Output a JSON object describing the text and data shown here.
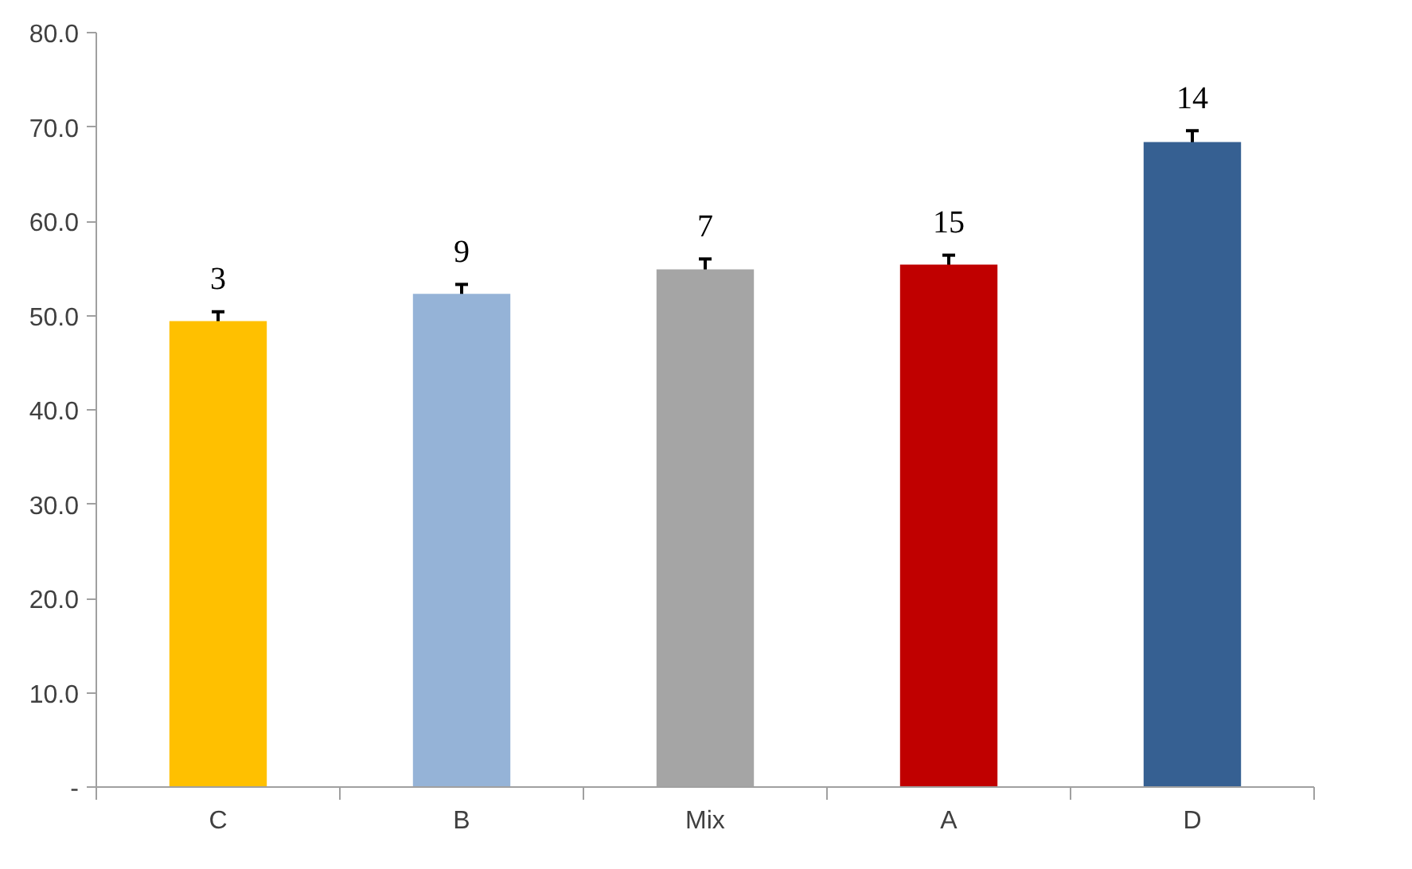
{
  "chart_data": {
    "type": "bar",
    "categories": [
      "C",
      "B",
      "Mix",
      "A",
      "D"
    ],
    "values": [
      49.4,
      52.3,
      54.9,
      55.4,
      68.4
    ],
    "colors": [
      "#ffc000",
      "#95b3d7",
      "#a5a5a5",
      "#c00000",
      "#366092"
    ],
    "errors": [
      1.0,
      1.0,
      1.1,
      1.0,
      1.2
    ],
    "ylim": [
      0,
      80
    ],
    "yticks": [
      {
        "value": 0,
        "label": "-"
      },
      {
        "value": 10,
        "label": "10.0"
      },
      {
        "value": 20,
        "label": "20.0"
      },
      {
        "value": 30,
        "label": "30.0"
      },
      {
        "value": 40,
        "label": "40.0"
      },
      {
        "value": 50,
        "label": "50.0"
      },
      {
        "value": 60,
        "label": "60.0"
      },
      {
        "value": 70,
        "label": "70.0"
      },
      {
        "value": 80,
        "label": "80.0"
      }
    ],
    "grid": false,
    "annotations": [
      "3",
      "9",
      "7",
      "15",
      "14"
    ]
  }
}
